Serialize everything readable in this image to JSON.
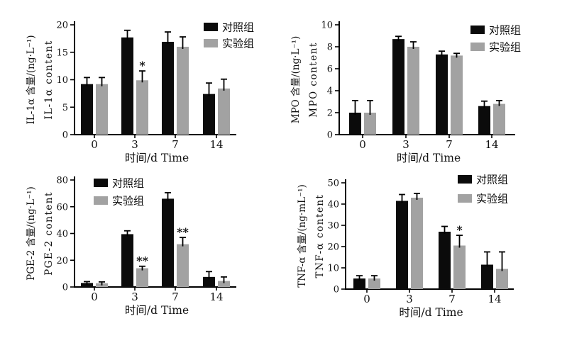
{
  "figure": {
    "background_color": "#ffffff",
    "bar_colors": {
      "control": "#0b0b0b",
      "experimental": "#a2a2a2"
    },
    "legend_labels": {
      "control": "对照组",
      "experimental": "实验组"
    }
  },
  "chart_data": [
    {
      "type": "bar",
      "id": "il1a",
      "ylabel_cn": "IL-1α 含量/(ng·L⁻¹)",
      "ylabel_en": "IL-1α content",
      "xlabel": "时间/d Time",
      "categories": [
        "0",
        "3",
        "7",
        "14"
      ],
      "ylim": [
        0,
        20
      ],
      "ytick_step": 5,
      "grid": false,
      "legend_position": "top-right",
      "series": [
        {
          "name": "对照组",
          "key": "control",
          "values": [
            9.2,
            17.7,
            16.9,
            7.4
          ],
          "errors": [
            1.2,
            1.3,
            1.8,
            2.0
          ]
        },
        {
          "name": "实验组",
          "key": "experimental",
          "values": [
            9.2,
            9.9,
            16.0,
            8.4
          ],
          "errors": [
            1.2,
            1.7,
            1.8,
            1.7
          ]
        }
      ],
      "significance": [
        {
          "series": 1,
          "category_index": 1,
          "label": "*"
        }
      ]
    },
    {
      "type": "bar",
      "id": "mpo",
      "ylabel_cn": "MPO 含量/(ng·L⁻¹)",
      "ylabel_en": "MPO content",
      "xlabel": "时间/d Time",
      "categories": [
        "0",
        "3",
        "7",
        "14"
      ],
      "ylim": [
        0,
        10
      ],
      "ytick_step": 2,
      "grid": false,
      "legend_position": "top-right",
      "series": [
        {
          "name": "对照组",
          "key": "control",
          "values": [
            2.0,
            8.7,
            7.3,
            2.6
          ],
          "errors": [
            1.1,
            0.25,
            0.3,
            0.45
          ]
        },
        {
          "name": "实验组",
          "key": "experimental",
          "values": [
            2.0,
            8.0,
            7.2,
            2.8
          ],
          "errors": [
            1.1,
            0.45,
            0.2,
            0.3
          ]
        }
      ],
      "significance": []
    },
    {
      "type": "bar",
      "id": "pge2",
      "ylabel_cn": "PGE-2 含量/(ng·L⁻¹)",
      "ylabel_en": "PGE-2 content",
      "xlabel": "时间/d Time",
      "categories": [
        "0",
        "3",
        "7",
        "14"
      ],
      "ylim": [
        0,
        80
      ],
      "ytick_step": 20,
      "grid": false,
      "legend_position": "top-left",
      "series": [
        {
          "name": "对照组",
          "key": "control",
          "values": [
            3.0,
            39.5,
            66.0,
            7.5
          ],
          "errors": [
            1.0,
            2.5,
            4.5,
            4.0
          ]
        },
        {
          "name": "实验组",
          "key": "experimental",
          "values": [
            2.8,
            14.0,
            32.0,
            4.5
          ],
          "errors": [
            1.0,
            1.5,
            5.0,
            3.0
          ]
        }
      ],
      "significance": [
        {
          "series": 1,
          "category_index": 1,
          "label": "**"
        },
        {
          "series": 1,
          "category_index": 2,
          "label": "**"
        }
      ]
    },
    {
      "type": "bar",
      "id": "tnfa",
      "ylabel_cn": "TNF-α 含量/(ng·mL⁻¹)",
      "ylabel_en": "TNF-α content",
      "xlabel": "时间/d Time",
      "categories": [
        "0",
        "3",
        "7",
        "14"
      ],
      "ylim": [
        0,
        50
      ],
      "ytick_step": 10,
      "grid": false,
      "legend_position": "top-right",
      "series": [
        {
          "name": "对照组",
          "key": "control",
          "values": [
            5.0,
            41.5,
            27.0,
            11.5
          ],
          "errors": [
            1.3,
            3.0,
            2.5,
            6.0
          ]
        },
        {
          "name": "实验组",
          "key": "experimental",
          "values": [
            5.0,
            43.0,
            20.5,
            9.5
          ],
          "errors": [
            1.3,
            2.0,
            4.8,
            8.0
          ]
        }
      ],
      "significance": [
        {
          "series": 1,
          "category_index": 2,
          "label": "*"
        }
      ]
    }
  ]
}
